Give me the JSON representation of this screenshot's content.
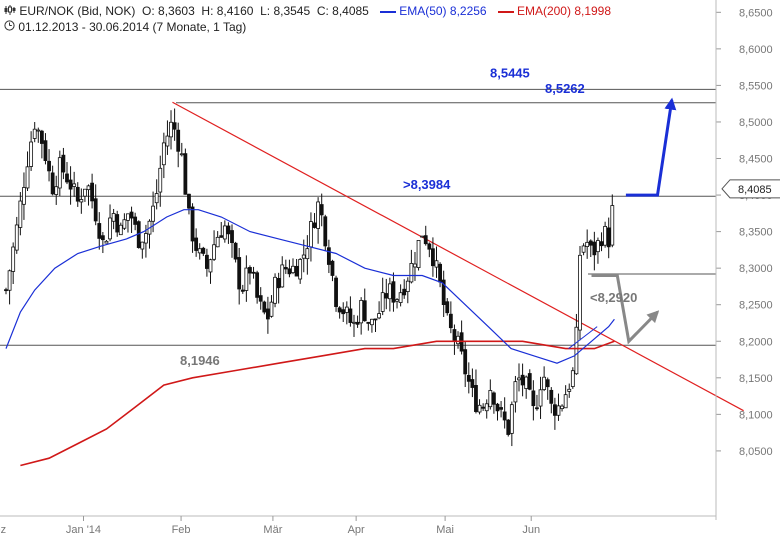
{
  "header": {
    "line1": {
      "icon": "candlestick-icon",
      "instrument": "EUR/NOK (Bid, NOK)",
      "ohlc": "O: 8,3603  H: 8,4160  L: 8,3545  C: 8,4085",
      "ema50_label": "EMA(50)",
      "ema50_value": "8,2256",
      "ema200_label": "EMA(200)",
      "ema200_value": "8,1998"
    },
    "line2": {
      "icon": "clock-icon",
      "range": "01.12.2013 - 30.06.2014 (7 Monate, 1 Tag)"
    }
  },
  "colors": {
    "ema50": "#1a2fd6",
    "ema200": "#d01818",
    "trendline": "#e02020",
    "candles": "#111111",
    "level_lines": "#555555",
    "annotation_blue": "#1a2fd6",
    "annotation_gray": "#888888"
  },
  "chart_data": {
    "type": "candlestick",
    "title": "EUR/NOK (Bid, NOK)",
    "period": "01.12.2013 - 30.06.2014",
    "ylim": [
      8.03,
      8.66
    ],
    "y_ticks": [
      "8,6500",
      "8,6000",
      "8,5500",
      "8,5000",
      "8,4500",
      "8,4000",
      "8,3500",
      "8,3000",
      "8,2500",
      "8,2000",
      "8,1500",
      "8,1000",
      "8,0500"
    ],
    "x_labels": [
      "ez",
      "Jan '14",
      "Feb",
      "Mär",
      "Apr",
      "Mai",
      "Jun"
    ],
    "x_label_days": [
      -4,
      27,
      61,
      93,
      122,
      153,
      183
    ],
    "last_price_label": "8,4085",
    "last_price": 8.4085,
    "close_series": [
      {
        "day": 0,
        "value": 8.27
      },
      {
        "day": 4,
        "value": 8.36
      },
      {
        "day": 7,
        "value": 8.44
      },
      {
        "day": 10,
        "value": 8.5
      },
      {
        "day": 13,
        "value": 8.47
      },
      {
        "day": 16,
        "value": 8.41
      },
      {
        "day": 19,
        "value": 8.44
      },
      {
        "day": 22,
        "value": 8.42
      },
      {
        "day": 25,
        "value": 8.39
      },
      {
        "day": 28,
        "value": 8.42
      },
      {
        "day": 31,
        "value": 8.38
      },
      {
        "day": 34,
        "value": 8.33
      },
      {
        "day": 37,
        "value": 8.38
      },
      {
        "day": 40,
        "value": 8.35
      },
      {
        "day": 43,
        "value": 8.38
      },
      {
        "day": 46,
        "value": 8.34
      },
      {
        "day": 49,
        "value": 8.35
      },
      {
        "day": 52,
        "value": 8.39
      },
      {
        "day": 55,
        "value": 8.47
      },
      {
        "day": 58,
        "value": 8.5
      },
      {
        "day": 61,
        "value": 8.46
      },
      {
        "day": 64,
        "value": 8.36
      },
      {
        "day": 67,
        "value": 8.32
      },
      {
        "day": 70,
        "value": 8.3
      },
      {
        "day": 73,
        "value": 8.34
      },
      {
        "day": 76,
        "value": 8.36
      },
      {
        "day": 79,
        "value": 8.32
      },
      {
        "day": 82,
        "value": 8.27
      },
      {
        "day": 85,
        "value": 8.3
      },
      {
        "day": 88,
        "value": 8.25
      },
      {
        "day": 91,
        "value": 8.23
      },
      {
        "day": 94,
        "value": 8.28
      },
      {
        "day": 97,
        "value": 8.3
      },
      {
        "day": 100,
        "value": 8.3
      },
      {
        "day": 103,
        "value": 8.31
      },
      {
        "day": 106,
        "value": 8.35
      },
      {
        "day": 109,
        "value": 8.39
      },
      {
        "day": 112,
        "value": 8.33
      },
      {
        "day": 115,
        "value": 8.26
      },
      {
        "day": 118,
        "value": 8.24
      },
      {
        "day": 121,
        "value": 8.22
      },
      {
        "day": 124,
        "value": 8.25
      },
      {
        "day": 127,
        "value": 8.22
      },
      {
        "day": 130,
        "value": 8.24
      },
      {
        "day": 133,
        "value": 8.27
      },
      {
        "day": 136,
        "value": 8.26
      },
      {
        "day": 139,
        "value": 8.28
      },
      {
        "day": 142,
        "value": 8.31
      },
      {
        "day": 145,
        "value": 8.35
      },
      {
        "day": 148,
        "value": 8.33
      },
      {
        "day": 151,
        "value": 8.28
      },
      {
        "day": 154,
        "value": 8.22
      },
      {
        "day": 157,
        "value": 8.2
      },
      {
        "day": 160,
        "value": 8.16
      },
      {
        "day": 163,
        "value": 8.12
      },
      {
        "day": 166,
        "value": 8.11
      },
      {
        "day": 169,
        "value": 8.14
      },
      {
        "day": 172,
        "value": 8.1
      },
      {
        "day": 175,
        "value": 8.08
      },
      {
        "day": 178,
        "value": 8.15
      },
      {
        "day": 181,
        "value": 8.14
      },
      {
        "day": 184,
        "value": 8.1
      },
      {
        "day": 187,
        "value": 8.16
      },
      {
        "day": 190,
        "value": 8.11
      },
      {
        "day": 193,
        "value": 8.11
      },
      {
        "day": 196,
        "value": 8.14
      },
      {
        "day": 198,
        "value": 8.16
      },
      {
        "day": 199,
        "value": 8.22
      },
      {
        "day": 200,
        "value": 8.32
      },
      {
        "day": 202,
        "value": 8.34
      },
      {
        "day": 204,
        "value": 8.32
      },
      {
        "day": 206,
        "value": 8.33
      },
      {
        "day": 208,
        "value": 8.35
      },
      {
        "day": 210,
        "value": 8.34
      },
      {
        "day": 211,
        "value": 8.37
      },
      {
        "day": 212,
        "value": 8.4
      }
    ],
    "ema50_series": [
      {
        "day": 0,
        "value": 8.19
      },
      {
        "day": 5,
        "value": 8.24
      },
      {
        "day": 10,
        "value": 8.27
      },
      {
        "day": 17,
        "value": 8.3
      },
      {
        "day": 25,
        "value": 8.32
      },
      {
        "day": 33,
        "value": 8.33
      },
      {
        "day": 42,
        "value": 8.34
      },
      {
        "day": 48,
        "value": 8.35
      },
      {
        "day": 56,
        "value": 8.37
      },
      {
        "day": 62,
        "value": 8.38
      },
      {
        "day": 67,
        "value": 8.38
      },
      {
        "day": 75,
        "value": 8.37
      },
      {
        "day": 85,
        "value": 8.35
      },
      {
        "day": 95,
        "value": 8.34
      },
      {
        "day": 105,
        "value": 8.33
      },
      {
        "day": 115,
        "value": 8.32
      },
      {
        "day": 125,
        "value": 8.3
      },
      {
        "day": 135,
        "value": 8.29
      },
      {
        "day": 145,
        "value": 8.29
      },
      {
        "day": 152,
        "value": 8.28
      },
      {
        "day": 160,
        "value": 8.25
      },
      {
        "day": 168,
        "value": 8.22
      },
      {
        "day": 176,
        "value": 8.19
      },
      {
        "day": 184,
        "value": 8.18
      },
      {
        "day": 192,
        "value": 8.17
      },
      {
        "day": 198,
        "value": 8.18
      },
      {
        "day": 204,
        "value": 8.2
      },
      {
        "day": 210,
        "value": 8.22
      },
      {
        "day": 212,
        "value": 8.23
      }
    ],
    "ema200_series": [
      {
        "day": 5,
        "value": 8.03
      },
      {
        "day": 15,
        "value": 8.04
      },
      {
        "day": 25,
        "value": 8.06
      },
      {
        "day": 35,
        "value": 8.08
      },
      {
        "day": 45,
        "value": 8.11
      },
      {
        "day": 55,
        "value": 8.14
      },
      {
        "day": 65,
        "value": 8.15
      },
      {
        "day": 80,
        "value": 8.16
      },
      {
        "day": 95,
        "value": 8.17
      },
      {
        "day": 110,
        "value": 8.18
      },
      {
        "day": 125,
        "value": 8.19
      },
      {
        "day": 135,
        "value": 8.19
      },
      {
        "day": 150,
        "value": 8.2
      },
      {
        "day": 165,
        "value": 8.2
      },
      {
        "day": 180,
        "value": 8.2
      },
      {
        "day": 195,
        "value": 8.19
      },
      {
        "day": 205,
        "value": 8.19
      },
      {
        "day": 212,
        "value": 8.2
      }
    ],
    "horizontal_levels": [
      {
        "value": 8.5445,
        "label": "8,5445",
        "style": "blue"
      },
      {
        "value": 8.5262,
        "label": "8,5262",
        "style": "blue"
      },
      {
        "value": 8.3984,
        "label": ">8,3984",
        "style": "blue"
      },
      {
        "value": 8.292,
        "label": "<8,2920",
        "style": "gray"
      },
      {
        "value": 8.1946,
        "label": "8,1946",
        "style": "gray"
      }
    ],
    "trendline": {
      "from": {
        "day": 58,
        "value": 8.527
      },
      "to": {
        "day": 257,
        "value": 8.105
      }
    },
    "forecast_paths": [
      {
        "style": "blue",
        "points": [
          {
            "day": 216,
            "value": 8.4
          },
          {
            "day": 227,
            "value": 8.4
          },
          {
            "day": 232,
            "value": 8.53
          }
        ]
      },
      {
        "style": "gray",
        "points": [
          {
            "day": 204,
            "value": 8.29
          },
          {
            "day": 213,
            "value": 8.29
          },
          {
            "day": 217,
            "value": 8.2
          },
          {
            "day": 227,
            "value": 8.24
          }
        ]
      },
      {
        "style": "blue-thin",
        "points": [
          {
            "day": 196,
            "value": 8.19
          },
          {
            "day": 206,
            "value": 8.22
          }
        ]
      }
    ]
  }
}
